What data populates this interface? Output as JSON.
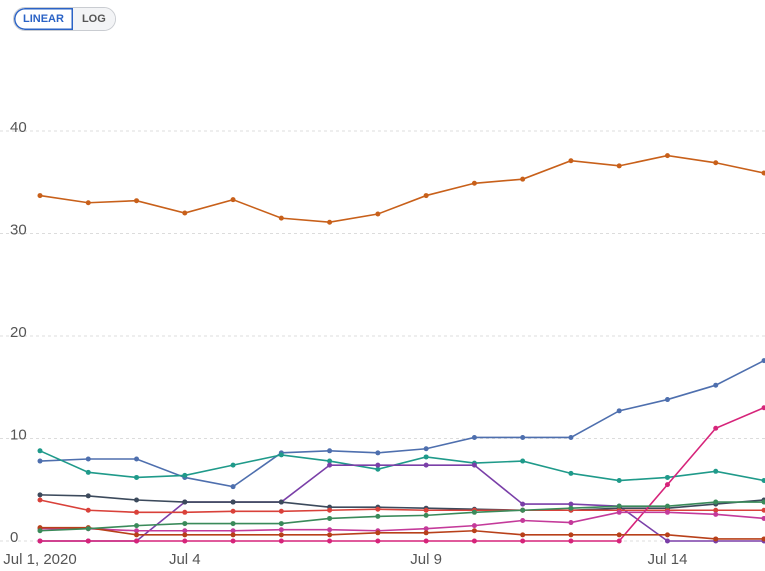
{
  "controls": {
    "scale_options": [
      "LINEAR",
      "LOG"
    ],
    "selected": 0
  },
  "chart_data": {
    "type": "line",
    "x": [
      "2020-07-01",
      "2020-07-02",
      "2020-07-03",
      "2020-07-04",
      "2020-07-05",
      "2020-07-06",
      "2020-07-07",
      "2020-07-08",
      "2020-07-09",
      "2020-07-10",
      "2020-07-11",
      "2020-07-12",
      "2020-07-13",
      "2020-07-14",
      "2020-07-15",
      "2020-07-16"
    ],
    "xlim": [
      "2020-07-01",
      "2020-07-16"
    ],
    "xticks": [
      {
        "value": "2020-07-01",
        "label": "Jul 1, 2020"
      },
      {
        "value": "2020-07-04",
        "label": "Jul 4"
      },
      {
        "value": "2020-07-09",
        "label": "Jul 9"
      },
      {
        "value": "2020-07-14",
        "label": "Jul 14"
      }
    ],
    "ylim": [
      0,
      40
    ],
    "yticks": [
      0,
      10,
      20,
      30,
      40
    ],
    "grid": true,
    "log_scale": false,
    "series": [
      {
        "color": "#c8601a",
        "values": [
          33.7,
          33.0,
          33.2,
          32.0,
          33.3,
          31.5,
          31.1,
          31.9,
          33.7,
          34.9,
          35.3,
          37.1,
          36.6,
          37.6,
          36.9,
          35.9
        ]
      },
      {
        "color": "#4e6fae",
        "values": [
          7.8,
          8.0,
          8.0,
          6.2,
          5.3,
          8.6,
          8.8,
          8.6,
          9.0,
          10.1,
          10.1,
          10.1,
          12.7,
          13.8,
          15.2,
          17.6
        ]
      },
      {
        "color": "#1f9a8a",
        "values": [
          8.8,
          6.7,
          6.2,
          6.4,
          7.4,
          8.4,
          7.8,
          7.0,
          8.2,
          7.6,
          7.8,
          6.6,
          5.9,
          6.2,
          6.8,
          5.9
        ]
      },
      {
        "color": "#7a3fa8",
        "values": [
          0,
          0,
          0,
          3.8,
          3.8,
          3.8,
          7.4,
          7.4,
          7.4,
          7.4,
          3.6,
          3.6,
          3.4,
          0,
          0,
          0
        ]
      },
      {
        "color": "#3c4a5c",
        "values": [
          4.5,
          4.4,
          4.0,
          3.8,
          3.8,
          3.8,
          3.3,
          3.3,
          3.2,
          3.1,
          3.0,
          3.0,
          3.2,
          3.2,
          3.6,
          4.0
        ]
      },
      {
        "color": "#d9413a",
        "values": [
          4.0,
          3.0,
          2.8,
          2.8,
          2.9,
          2.9,
          3.0,
          3.1,
          3.0,
          3.0,
          3.0,
          3.0,
          3.0,
          3.0,
          3.0,
          3.0
        ]
      },
      {
        "color": "#d6247a",
        "values": [
          0,
          0,
          0,
          0,
          0,
          0,
          0,
          0,
          0,
          0,
          0,
          0,
          0,
          5.5,
          11.0,
          13.0
        ]
      },
      {
        "color": "#c43a9a",
        "values": [
          1.2,
          1.2,
          1.0,
          1.0,
          1.0,
          1.1,
          1.1,
          1.0,
          1.2,
          1.5,
          2.0,
          1.8,
          2.8,
          2.8,
          2.6,
          2.2
        ]
      },
      {
        "color": "#b8401a",
        "values": [
          1.3,
          1.3,
          0.6,
          0.6,
          0.6,
          0.6,
          0.6,
          0.8,
          0.8,
          1.0,
          0.6,
          0.6,
          0.6,
          0.6,
          0.2,
          0.2
        ]
      },
      {
        "color": "#3a8a5a",
        "values": [
          1.0,
          1.2,
          1.5,
          1.7,
          1.7,
          1.7,
          2.2,
          2.4,
          2.5,
          2.8,
          3.0,
          3.2,
          3.4,
          3.4,
          3.8,
          3.8
        ]
      }
    ]
  }
}
